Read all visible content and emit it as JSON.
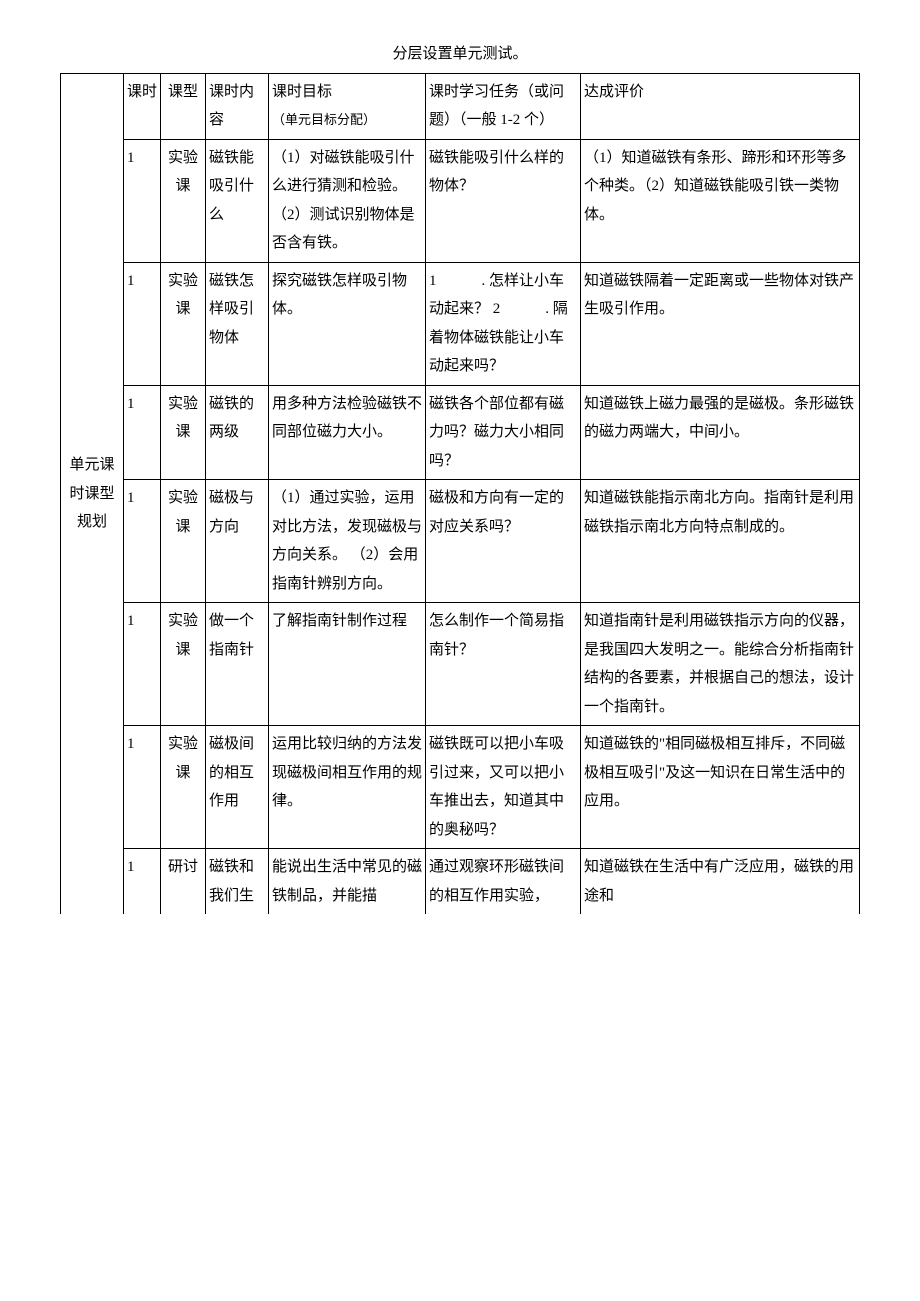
{
  "caption": "分层设置单元测试。",
  "sideLabel": "单元课时课型规划",
  "header": {
    "kseq": "课时",
    "ktype": "课型",
    "kcont": "课时内容",
    "goal": "课时目标",
    "goalSub": "（单元目标分配）",
    "task": "课时学习任务（或问题）（一般 1-2 个）",
    "eval": "达成评价"
  },
  "rows": [
    {
      "kseq": "1",
      "ktype": "实验课",
      "kcont": "磁铁能吸引什么",
      "goal": "（1）对磁铁能吸引什么进行猜测和检验。（2）测试识别物体是否含有铁。",
      "task": "磁铁能吸引什么样的物体？",
      "eval": "（1）知道磁铁有条形、蹄形和环形等多个种类。（2）知道磁铁能吸引铁一类物体。"
    },
    {
      "kseq": "1",
      "ktype": "实验课",
      "kcont": "磁铁怎样吸引物体",
      "goal": "探究磁铁怎样吸引物体。",
      "task": "1　　　. 怎样让小车动起来？\n2　　　. 隔着物体磁铁能让小车动起来吗？",
      "eval": "知道磁铁隔着一定距离或一些物体对铁产生吸引作用。"
    },
    {
      "kseq": "1",
      "ktype": "实验课",
      "kcont": "磁铁的两级",
      "goal": "用多种方法检验磁铁不同部位磁力大小。",
      "task": "磁铁各个部位都有磁力吗？磁力大小相同吗？",
      "eval": "知道磁铁上磁力最强的是磁极。条形磁铁的磁力两端大，中间小。"
    },
    {
      "kseq": "1",
      "ktype": "实验课",
      "kcont": "磁极与方向",
      "goal": "（1）通过实验，运用对比方法，发现磁极与方向关系。\n（2）会用指南针辨别方向。",
      "task": "磁极和方向有一定的对应关系吗？",
      "eval": "知道磁铁能指示南北方向。指南针是利用磁铁指示南北方向特点制成的。"
    },
    {
      "kseq": "1",
      "ktype": "实验课",
      "kcont": "做一个指南针",
      "goal": "了解指南针制作过程",
      "task": "怎么制作一个简易指南针？",
      "eval": "知道指南针是利用磁铁指示方向的仪器，是我国四大发明之一。能综合分析指南针结构的各要素，并根据自己的想法，设计一个指南针。"
    },
    {
      "kseq": "1",
      "ktype": "实验课",
      "kcont": "磁极间的相互作用",
      "goal": "运用比较归纳的方法发现磁极间相互作用的规律。",
      "task": "磁铁既可以把小车吸引过来，又可以把小车推出去，知道其中的奥秘吗？",
      "eval": "知道磁铁的\"相同磁极相互排斥，不同磁极相互吸引\"及这一知识在日常生活中的应用。"
    },
    {
      "kseq": "1",
      "ktype": "研讨",
      "kcont": "磁铁和我们生",
      "goal": "能说出生活中常见的磁铁制品，并能描",
      "task": "通过观察环形磁铁间的相互作用实验，",
      "eval": "知道磁铁在生活中有广泛应用，磁铁的用途和"
    }
  ]
}
